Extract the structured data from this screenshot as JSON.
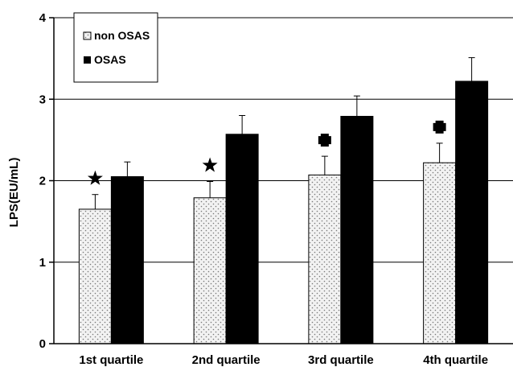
{
  "chart_data": {
    "type": "bar",
    "categories": [
      "1st quartile",
      "2nd quartile",
      "3rd quartile",
      "4th quartile"
    ],
    "series": [
      {
        "name": "non OSAS",
        "values": [
          1.65,
          1.79,
          2.07,
          2.22
        ],
        "errors": [
          0.18,
          0.2,
          0.23,
          0.24
        ],
        "fill": "dotted"
      },
      {
        "name": "OSAS",
        "values": [
          2.05,
          2.57,
          2.79,
          3.22
        ],
        "errors": [
          0.18,
          0.23,
          0.25,
          0.29
        ],
        "fill": "#000000"
      }
    ],
    "ylabel": "LPS(EU/mL)",
    "ylim": [
      0,
      4
    ],
    "yticks": [
      "0",
      "1",
      "2",
      "3",
      "4"
    ],
    "grid": true,
    "legend_position": "top-left",
    "annotations": [
      {
        "category": "1st quartile",
        "series": "non OSAS",
        "marker": "star"
      },
      {
        "category": "2nd quartile",
        "series": "non OSAS",
        "marker": "star"
      },
      {
        "category": "3rd quartile",
        "series": "non OSAS",
        "marker": "cross"
      },
      {
        "category": "4th quartile",
        "series": "non OSAS",
        "marker": "cross"
      }
    ]
  }
}
